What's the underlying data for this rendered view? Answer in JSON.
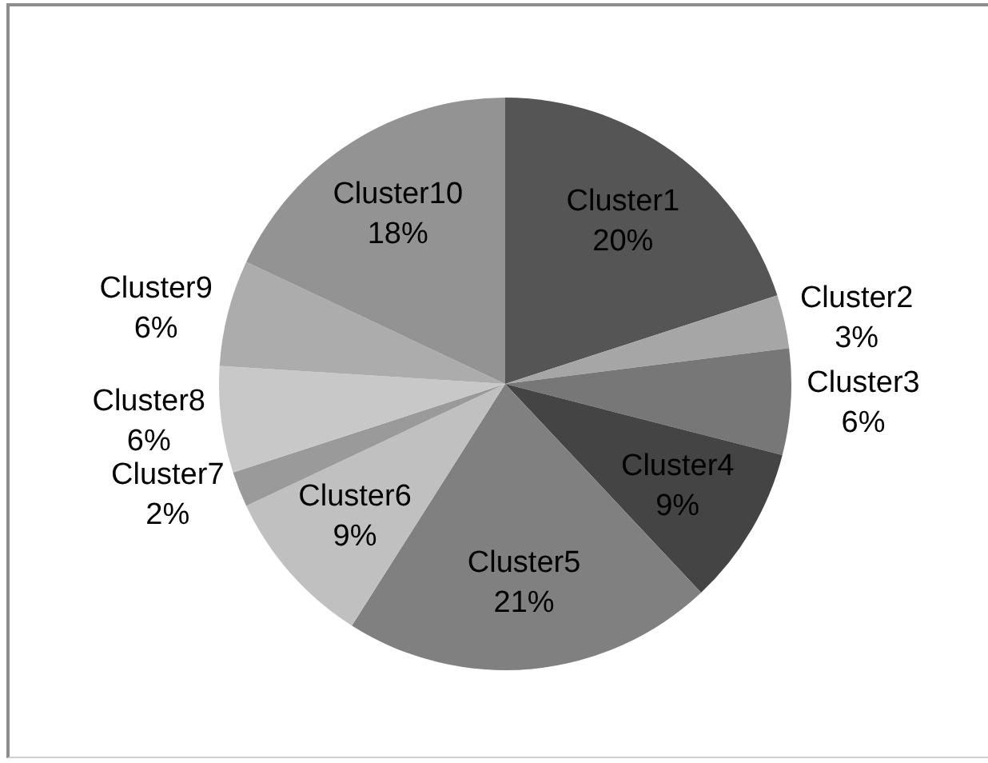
{
  "chart_data": {
    "type": "pie",
    "categories": [
      "Cluster1",
      "Cluster2",
      "Cluster3",
      "Cluster4",
      "Cluster5",
      "Cluster6",
      "Cluster7",
      "Cluster8",
      "Cluster9",
      "Cluster10"
    ],
    "values": [
      20,
      3,
      6,
      9,
      21,
      9,
      2,
      6,
      6,
      18
    ],
    "value_labels": [
      "20%",
      "3%",
      "6%",
      "9%",
      "21%",
      "9%",
      "2%",
      "6%",
      "6%",
      "18%"
    ],
    "colors": [
      "#555555",
      "#a6a6a6",
      "#777777",
      "#444444",
      "#808080",
      "#c0c0c0",
      "#9a9a9a",
      "#c8c8c8",
      "#acacac",
      "#939393"
    ]
  }
}
